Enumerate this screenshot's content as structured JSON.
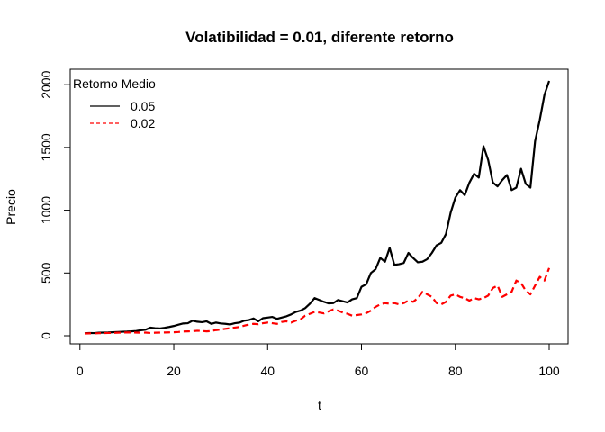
{
  "chart_data": {
    "type": "line",
    "title": "Volatibilidad = 0.01, diferente retorno",
    "xlabel": "t",
    "ylabel": "Precio",
    "xlim": [
      1,
      100
    ],
    "ylim": [
      0,
      2030
    ],
    "xticks": [
      0,
      20,
      40,
      60,
      80,
      100
    ],
    "yticks": [
      0,
      500,
      1000,
      1500,
      2000
    ],
    "grid": false,
    "legend": {
      "title": "Retorno Medio",
      "placement": "top-left",
      "entries": [
        {
          "label": "0.05",
          "color": "#000000",
          "dash": "solid"
        },
        {
          "label": "0.02",
          "color": "#ff0000",
          "dash": "dashed"
        }
      ]
    },
    "x": [
      1,
      2,
      3,
      4,
      5,
      6,
      7,
      8,
      9,
      10,
      11,
      12,
      13,
      14,
      15,
      16,
      17,
      18,
      19,
      20,
      21,
      22,
      23,
      24,
      25,
      26,
      27,
      28,
      29,
      30,
      31,
      32,
      33,
      34,
      35,
      36,
      37,
      38,
      39,
      40,
      41,
      42,
      43,
      44,
      45,
      46,
      47,
      48,
      49,
      50,
      51,
      52,
      53,
      54,
      55,
      56,
      57,
      58,
      59,
      60,
      61,
      62,
      63,
      64,
      65,
      66,
      67,
      68,
      69,
      70,
      71,
      72,
      73,
      74,
      75,
      76,
      77,
      78,
      79,
      80,
      81,
      82,
      83,
      84,
      85,
      86,
      87,
      88,
      89,
      90,
      91,
      92,
      93,
      94,
      95,
      96,
      97,
      98,
      99,
      100
    ],
    "series": [
      {
        "name": "0.05",
        "color": "#000000",
        "values": [
          20,
          22,
          21,
          24,
          25,
          26,
          28,
          30,
          32,
          33,
          35,
          38,
          44,
          48,
          65,
          60,
          58,
          63,
          70,
          78,
          88,
          98,
          100,
          120,
          112,
          108,
          115,
          95,
          105,
          98,
          95,
          90,
          100,
          105,
          120,
          125,
          138,
          115,
          140,
          145,
          150,
          135,
          145,
          155,
          170,
          190,
          200,
          220,
          255,
          300,
          285,
          270,
          258,
          260,
          285,
          275,
          265,
          290,
          300,
          390,
          410,
          500,
          530,
          620,
          590,
          700,
          565,
          570,
          580,
          660,
          620,
          585,
          590,
          610,
          660,
          720,
          740,
          810,
          980,
          1100,
          1160,
          1120,
          1220,
          1290,
          1260,
          1510,
          1400,
          1220,
          1190,
          1240,
          1280,
          1160,
          1180,
          1330,
          1210,
          1180,
          1550,
          1720,
          1920,
          2030
        ]
      },
      {
        "name": "0.02",
        "color": "#ff0000",
        "values": [
          18,
          19,
          18,
          20,
          21,
          22,
          22,
          24,
          25,
          26,
          26,
          25,
          24,
          25,
          22,
          24,
          25,
          26,
          27,
          28,
          30,
          34,
          35,
          36,
          40,
          38,
          35,
          38,
          45,
          50,
          55,
          60,
          65,
          70,
          80,
          90,
          95,
          92,
          100,
          105,
          100,
          95,
          110,
          115,
          105,
          120,
          130,
          160,
          175,
          190,
          185,
          178,
          195,
          210,
          200,
          185,
          175,
          160,
          165,
          170,
          180,
          200,
          230,
          250,
          260,
          255,
          260,
          250,
          260,
          280,
          270,
          300,
          350,
          330,
          310,
          260,
          250,
          270,
          320,
          330,
          310,
          300,
          280,
          300,
          290,
          300,
          320,
          380,
          400,
          310,
          330,
          350,
          440,
          420,
          360,
          330,
          400,
          470,
          440,
          540
        ]
      }
    ]
  }
}
